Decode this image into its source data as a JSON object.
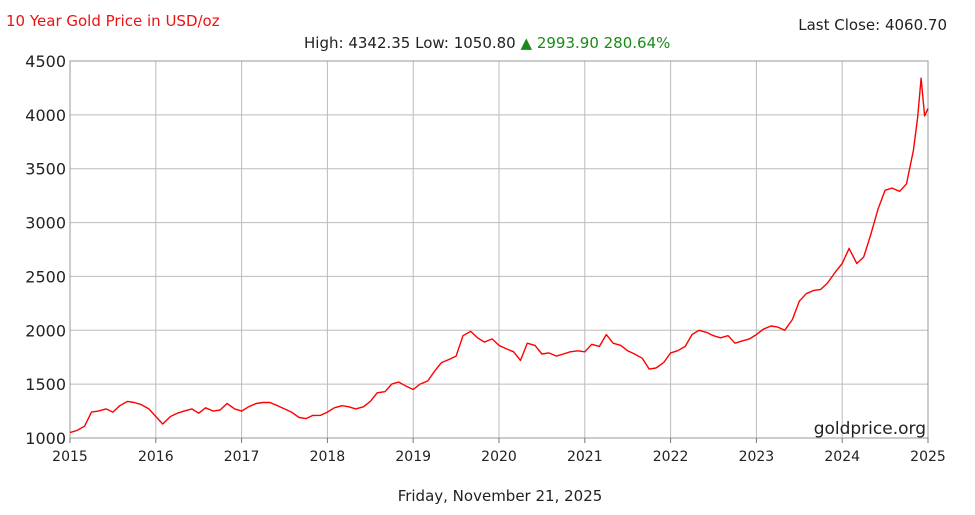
{
  "header": {
    "title": "10 Year Gold Price in USD/oz",
    "last_close_label": "Last Close:",
    "last_close_value": "4060.70",
    "high_label": "High:",
    "high_value": "4342.35",
    "low_label": "Low:",
    "low_value": "1050.80",
    "change_arrow": "▲",
    "change_value": "2993.90",
    "change_percent": "280.64%"
  },
  "footer": {
    "date": "Friday, November 21, 2025"
  },
  "colors": {
    "line": "#ff0000",
    "title": "#ee1111",
    "change_up": "#1a8a1a",
    "grid": "#bbbbbb"
  },
  "chart_data": {
    "type": "line",
    "title": "10 Year Gold Price in USD/oz",
    "watermark": "goldprice.org",
    "xlabel": "",
    "ylabel": "",
    "xlim": [
      2015,
      2025
    ],
    "ylim": [
      1000,
      4500
    ],
    "x_ticks": [
      "2015",
      "2016",
      "2017",
      "2018",
      "2019",
      "2020",
      "2021",
      "2022",
      "2023",
      "2024",
      "2025"
    ],
    "y_ticks": [
      "1000",
      "1500",
      "2000",
      "2500",
      "3000",
      "3500",
      "4000",
      "4500"
    ],
    "grid": true,
    "series": [
      {
        "name": "",
        "color": "#ff0000",
        "x": [
          2015.0,
          2015.08,
          2015.17,
          2015.25,
          2015.33,
          2015.42,
          2015.5,
          2015.58,
          2015.67,
          2015.75,
          2015.83,
          2015.92,
          2016.0,
          2016.08,
          2016.17,
          2016.25,
          2016.33,
          2016.42,
          2016.5,
          2016.58,
          2016.67,
          2016.75,
          2016.83,
          2016.92,
          2017.0,
          2017.08,
          2017.17,
          2017.25,
          2017.33,
          2017.42,
          2017.5,
          2017.58,
          2017.67,
          2017.75,
          2017.83,
          2017.92,
          2018.0,
          2018.08,
          2018.17,
          2018.25,
          2018.33,
          2018.42,
          2018.5,
          2018.58,
          2018.67,
          2018.75,
          2018.83,
          2018.92,
          2019.0,
          2019.08,
          2019.17,
          2019.25,
          2019.33,
          2019.42,
          2019.5,
          2019.58,
          2019.67,
          2019.75,
          2019.83,
          2019.92,
          2020.0,
          2020.08,
          2020.17,
          2020.25,
          2020.33,
          2020.42,
          2020.5,
          2020.58,
          2020.67,
          2020.75,
          2020.83,
          2020.92,
          2021.0,
          2021.08,
          2021.17,
          2021.25,
          2021.33,
          2021.42,
          2021.5,
          2021.58,
          2021.67,
          2021.75,
          2021.83,
          2021.92,
          2022.0,
          2022.08,
          2022.17,
          2022.25,
          2022.33,
          2022.42,
          2022.5,
          2022.58,
          2022.67,
          2022.75,
          2022.83,
          2022.92,
          2023.0,
          2023.08,
          2023.17,
          2023.25,
          2023.33,
          2023.42,
          2023.5,
          2023.58,
          2023.67,
          2023.75,
          2023.83,
          2023.92,
          2024.0,
          2024.08,
          2024.17,
          2024.25,
          2024.33,
          2024.42,
          2024.5,
          2024.58,
          2024.67,
          2024.75,
          2024.83,
          2024.88,
          2024.92,
          2024.96,
          2025.0
        ],
        "values": [
          1050,
          1070,
          1110,
          1240,
          1250,
          1270,
          1240,
          1300,
          1340,
          1330,
          1310,
          1270,
          1200,
          1130,
          1200,
          1230,
          1250,
          1270,
          1230,
          1280,
          1250,
          1260,
          1320,
          1270,
          1250,
          1290,
          1320,
          1330,
          1330,
          1300,
          1270,
          1240,
          1190,
          1180,
          1210,
          1210,
          1240,
          1280,
          1300,
          1290,
          1270,
          1290,
          1340,
          1420,
          1430,
          1500,
          1520,
          1480,
          1450,
          1500,
          1530,
          1620,
          1700,
          1730,
          1760,
          1950,
          1990,
          1930,
          1890,
          1920,
          1860,
          1830,
          1800,
          1720,
          1880,
          1860,
          1780,
          1790,
          1760,
          1780,
          1800,
          1810,
          1800,
          1870,
          1850,
          1960,
          1880,
          1860,
          1810,
          1780,
          1740,
          1640,
          1650,
          1700,
          1790,
          1810,
          1850,
          1960,
          2000,
          1980,
          1950,
          1930,
          1950,
          1880,
          1900,
          1920,
          1960,
          2010,
          2040,
          2030,
          2000,
          2100,
          2270,
          2340,
          2370,
          2380,
          2440,
          2540,
          2620,
          2760,
          2620,
          2680,
          2880,
          3130,
          3300,
          3320,
          3290,
          3360,
          3670,
          3980,
          4340,
          3990,
          4060
        ]
      }
    ]
  }
}
